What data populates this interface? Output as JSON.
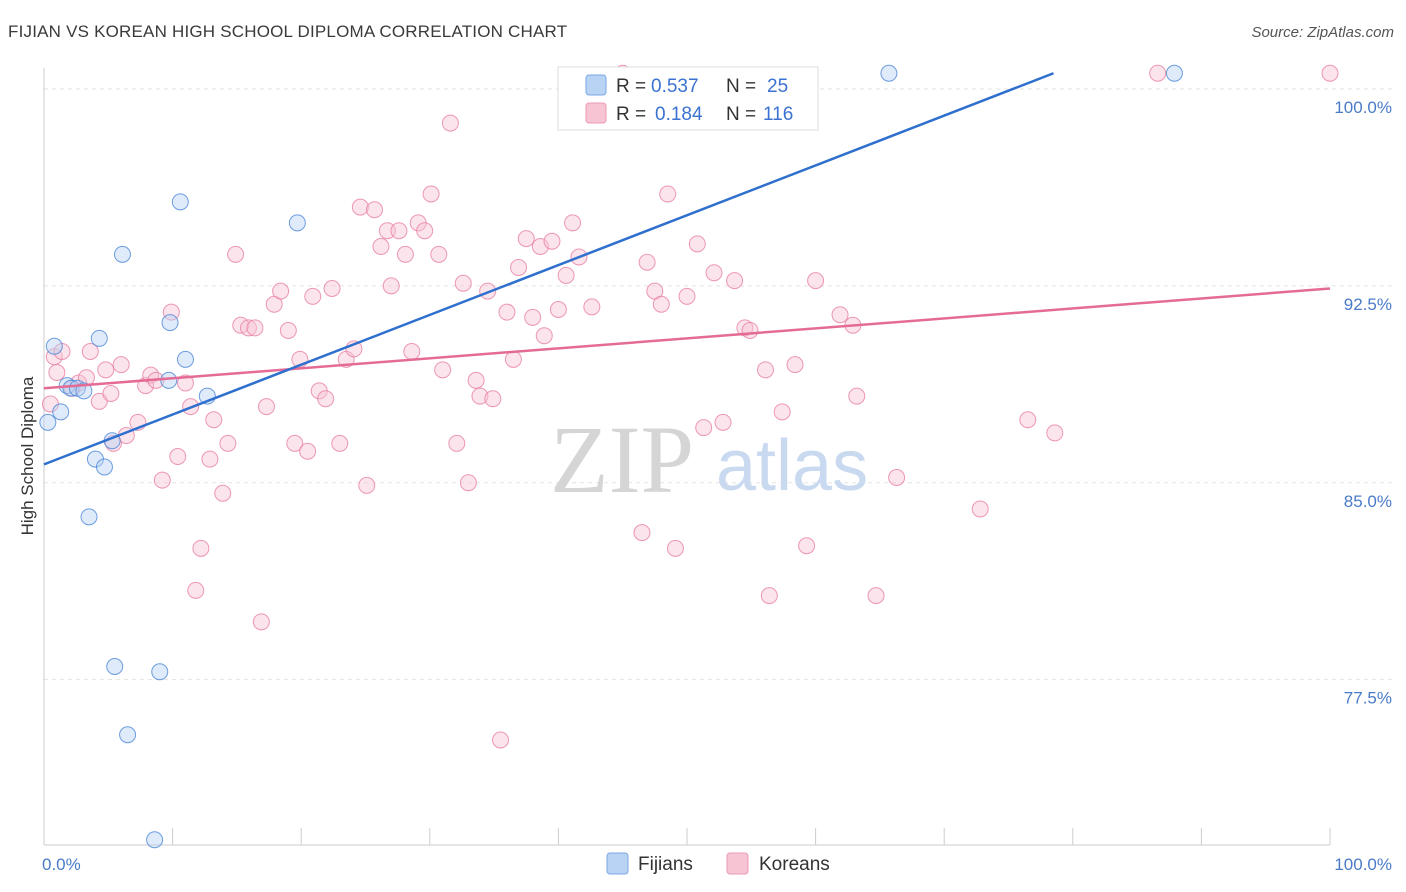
{
  "chart_data": {
    "type": "scatter",
    "title": "FIJIAN VS KOREAN HIGH SCHOOL DIPLOMA CORRELATION CHART",
    "source": "Source: ZipAtlas.com",
    "ylabel": "High School Diploma",
    "xlabel": "",
    "xlim": [
      0,
      100
    ],
    "ylim": [
      71.2,
      100.8
    ],
    "x_tick_labels": [
      "0.0%",
      "100.0%"
    ],
    "y_ticks": [
      77.5,
      85.0,
      92.5,
      100.0
    ],
    "y_tick_labels": [
      "77.5%",
      "85.0%",
      "92.5%",
      "100.0%"
    ],
    "grid": true,
    "legend_position": "top-center",
    "watermark": {
      "zip": "ZIP",
      "atlas": "atlas"
    },
    "colors": {
      "fijians": "#4a86d8",
      "koreans": "#e87fa3",
      "fijians_fill": "#b9d3f5",
      "koreans_fill": "#f7c4d4",
      "fijians_line": "#2f6fce",
      "koreans_line": "#e46b96"
    },
    "series": [
      {
        "name": "Fijians",
        "legend_r_label": "R = ",
        "r": "0.537",
        "legend_n_label": "N = ",
        "n": "25",
        "trend": {
          "x": [
            0,
            78.5
          ],
          "y": [
            85.7,
            100.6
          ]
        },
        "points": [
          [
            0.3,
            87.3
          ],
          [
            0.8,
            90.2
          ],
          [
            1.3,
            87.7
          ],
          [
            1.8,
            88.7
          ],
          [
            2.1,
            88.6
          ],
          [
            2.6,
            88.6
          ],
          [
            3.1,
            88.5
          ],
          [
            3.5,
            83.7
          ],
          [
            4.0,
            85.9
          ],
          [
            4.3,
            90.5
          ],
          [
            4.7,
            85.6
          ],
          [
            5.3,
            86.6
          ],
          [
            6.1,
            93.7
          ],
          [
            5.5,
            78.0
          ],
          [
            6.5,
            75.4
          ],
          [
            8.6,
            71.4
          ],
          [
            9.0,
            77.8
          ],
          [
            9.7,
            88.9
          ],
          [
            9.8,
            91.1
          ],
          [
            10.6,
            95.7
          ],
          [
            11.0,
            89.7
          ],
          [
            12.7,
            88.3
          ],
          [
            19.7,
            94.9
          ],
          [
            65.7,
            100.6
          ],
          [
            87.9,
            100.6
          ]
        ]
      },
      {
        "name": "Koreans",
        "legend_r_label": "R = ",
        "r": "0.184",
        "legend_n_label": "N = ",
        "n": "116",
        "trend": {
          "x": [
            0,
            100
          ],
          "y": [
            88.6,
            92.4
          ]
        },
        "points": [
          [
            0.5,
            88.0
          ],
          [
            0.8,
            89.8
          ],
          [
            1.0,
            89.2
          ],
          [
            1.4,
            90.0
          ],
          [
            2.2,
            88.6
          ],
          [
            2.7,
            88.8
          ],
          [
            3.3,
            89.0
          ],
          [
            3.6,
            90.0
          ],
          [
            4.3,
            88.1
          ],
          [
            4.8,
            89.3
          ],
          [
            5.2,
            88.4
          ],
          [
            5.4,
            86.5
          ],
          [
            6.0,
            89.5
          ],
          [
            6.4,
            86.8
          ],
          [
            7.3,
            87.3
          ],
          [
            7.9,
            88.7
          ],
          [
            8.3,
            89.1
          ],
          [
            8.7,
            88.9
          ],
          [
            9.2,
            85.1
          ],
          [
            9.9,
            91.5
          ],
          [
            10.4,
            86.0
          ],
          [
            11.0,
            88.8
          ],
          [
            11.4,
            87.9
          ],
          [
            11.8,
            80.9
          ],
          [
            12.2,
            82.5
          ],
          [
            12.9,
            85.9
          ],
          [
            13.2,
            87.4
          ],
          [
            13.9,
            84.6
          ],
          [
            14.3,
            86.5
          ],
          [
            14.9,
            93.7
          ],
          [
            15.3,
            91.0
          ],
          [
            15.9,
            90.9
          ],
          [
            16.4,
            90.9
          ],
          [
            16.9,
            79.7
          ],
          [
            17.3,
            87.9
          ],
          [
            17.9,
            91.8
          ],
          [
            18.4,
            92.3
          ],
          [
            19.0,
            90.8
          ],
          [
            19.5,
            86.5
          ],
          [
            19.9,
            89.7
          ],
          [
            20.5,
            86.2
          ],
          [
            20.9,
            92.1
          ],
          [
            21.4,
            88.5
          ],
          [
            21.9,
            88.2
          ],
          [
            22.4,
            92.4
          ],
          [
            23.0,
            86.5
          ],
          [
            23.5,
            89.7
          ],
          [
            24.1,
            90.1
          ],
          [
            24.6,
            95.5
          ],
          [
            25.1,
            84.9
          ],
          [
            25.7,
            95.4
          ],
          [
            26.2,
            94.0
          ],
          [
            26.7,
            94.6
          ],
          [
            27.0,
            92.5
          ],
          [
            27.6,
            94.6
          ],
          [
            28.1,
            93.7
          ],
          [
            28.6,
            90.0
          ],
          [
            29.1,
            94.9
          ],
          [
            29.6,
            94.6
          ],
          [
            30.1,
            96.0
          ],
          [
            30.7,
            93.7
          ],
          [
            31.0,
            89.3
          ],
          [
            31.6,
            98.7
          ],
          [
            32.1,
            86.5
          ],
          [
            32.6,
            92.6
          ],
          [
            33.0,
            85.0
          ],
          [
            33.6,
            88.9
          ],
          [
            33.9,
            88.3
          ],
          [
            34.5,
            92.3
          ],
          [
            34.9,
            88.2
          ],
          [
            35.5,
            75.2
          ],
          [
            36.0,
            91.5
          ],
          [
            36.5,
            89.7
          ],
          [
            36.9,
            93.2
          ],
          [
            37.5,
            94.3
          ],
          [
            38.0,
            91.3
          ],
          [
            38.6,
            94.0
          ],
          [
            38.9,
            90.6
          ],
          [
            39.5,
            94.2
          ],
          [
            40.0,
            91.6
          ],
          [
            40.6,
            92.9
          ],
          [
            41.1,
            94.9
          ],
          [
            41.6,
            93.6
          ],
          [
            42.6,
            91.7
          ],
          [
            45.0,
            100.6
          ],
          [
            46.5,
            83.1
          ],
          [
            46.9,
            93.4
          ],
          [
            47.5,
            92.3
          ],
          [
            48.0,
            91.8
          ],
          [
            48.5,
            96.0
          ],
          [
            49.1,
            82.5
          ],
          [
            50.0,
            92.1
          ],
          [
            50.8,
            94.1
          ],
          [
            51.3,
            87.1
          ],
          [
            52.1,
            93.0
          ],
          [
            52.8,
            87.3
          ],
          [
            53.7,
            92.7
          ],
          [
            54.5,
            90.9
          ],
          [
            54.9,
            90.8
          ],
          [
            56.1,
            89.3
          ],
          [
            56.4,
            80.7
          ],
          [
            57.4,
            87.7
          ],
          [
            58.4,
            89.5
          ],
          [
            59.3,
            82.6
          ],
          [
            60.0,
            92.7
          ],
          [
            61.9,
            91.4
          ],
          [
            62.9,
            91.0
          ],
          [
            63.2,
            88.3
          ],
          [
            64.7,
            80.7
          ],
          [
            66.3,
            85.2
          ],
          [
            72.8,
            84.0
          ],
          [
            76.5,
            87.4
          ],
          [
            78.6,
            86.9
          ],
          [
            86.6,
            100.6
          ],
          [
            100.0,
            100.6
          ]
        ]
      }
    ]
  }
}
